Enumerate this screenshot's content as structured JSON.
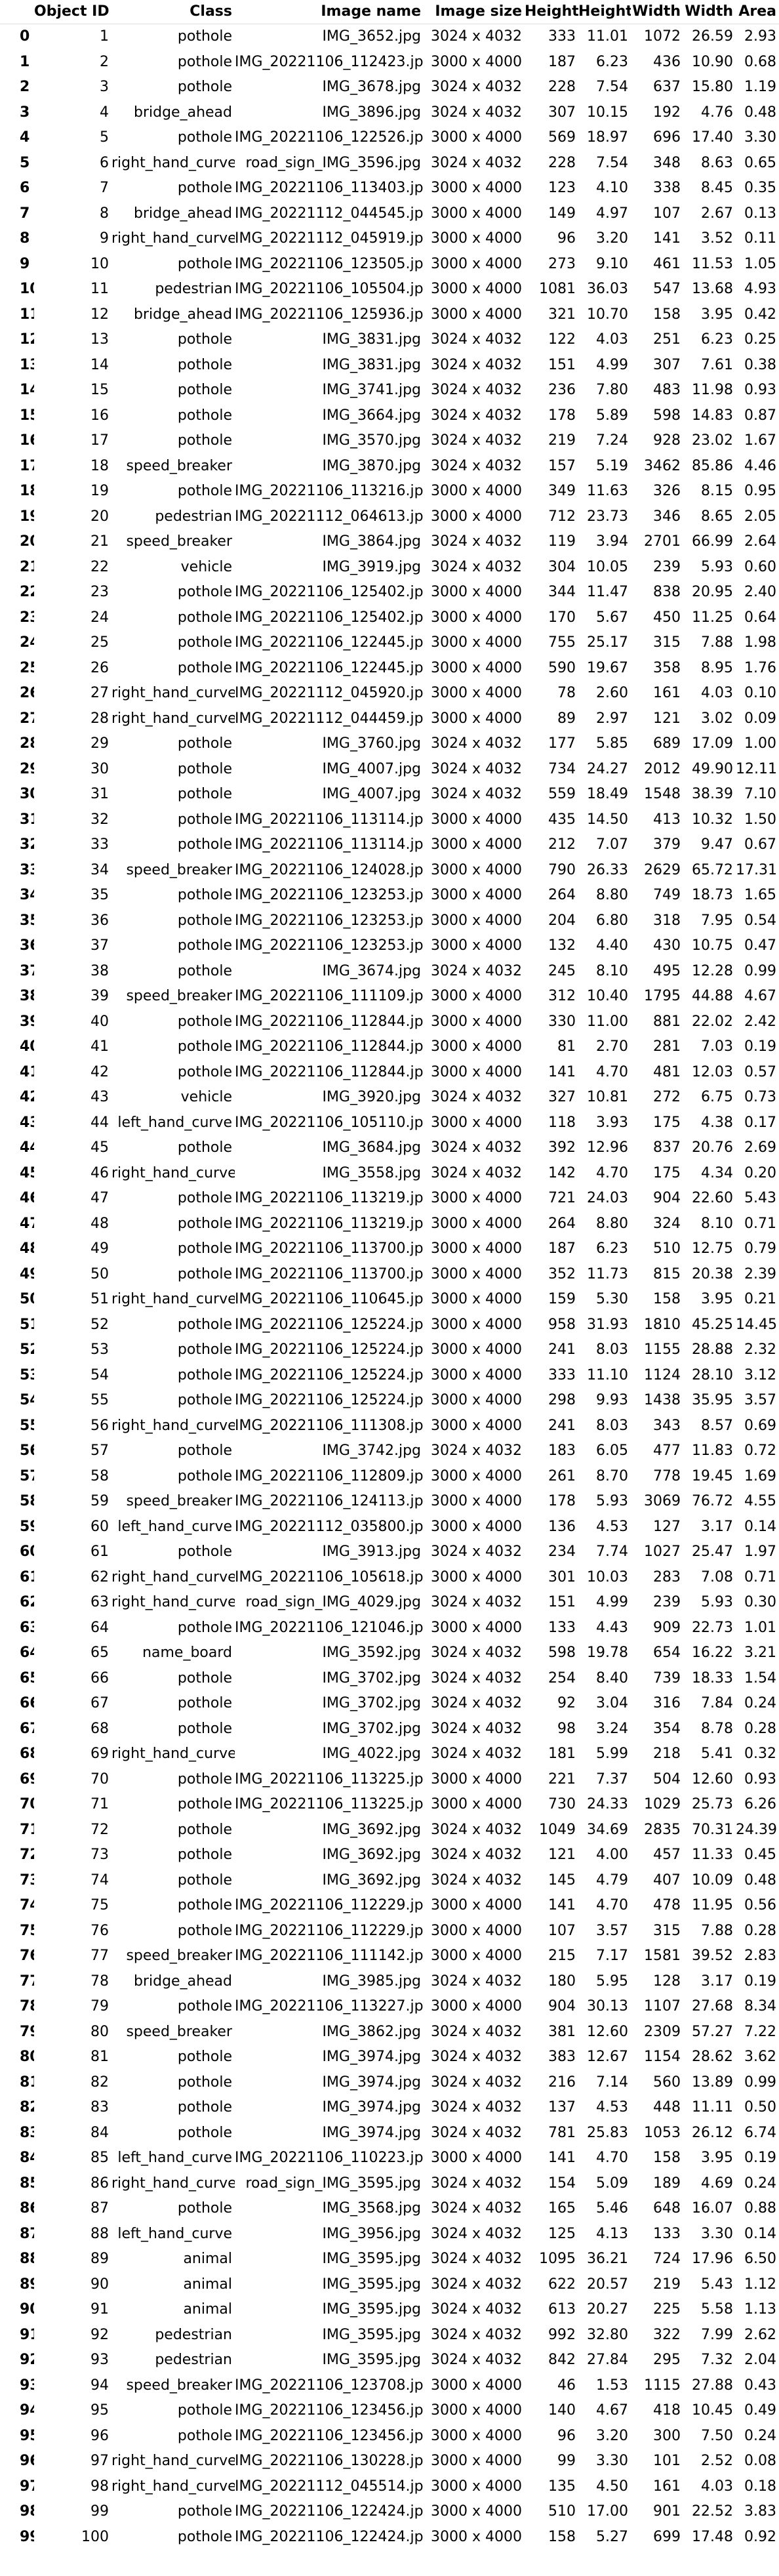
{
  "columns": [
    "",
    "Object ID",
    "Class",
    "Image name",
    "Image size",
    "Height",
    "Height",
    "Width",
    "Width",
    "Area"
  ],
  "rows": [
    [
      "0",
      "1",
      "pothole",
      "IMG_3652.jpg",
      "3024 x 4032",
      "333",
      "11.01",
      "1072",
      "26.59",
      "2.93"
    ],
    [
      "1",
      "2",
      "pothole",
      "IMG_20221106_112423.jpg",
      "3000 x 4000",
      "187",
      "6.23",
      "436",
      "10.90",
      "0.68"
    ],
    [
      "2",
      "3",
      "pothole",
      "IMG_3678.jpg",
      "3024 x 4032",
      "228",
      "7.54",
      "637",
      "15.80",
      "1.19"
    ],
    [
      "3",
      "4",
      "bridge_ahead",
      "IMG_3896.jpg",
      "3024 x 4032",
      "307",
      "10.15",
      "192",
      "4.76",
      "0.48"
    ],
    [
      "4",
      "5",
      "pothole",
      "IMG_20221106_122526.jpg",
      "3000 x 4000",
      "569",
      "18.97",
      "696",
      "17.40",
      "3.30"
    ],
    [
      "5",
      "6",
      "right_hand_curve",
      "road_sign_IMG_3596.jpg",
      "3024 x 4032",
      "228",
      "7.54",
      "348",
      "8.63",
      "0.65"
    ],
    [
      "6",
      "7",
      "pothole",
      "IMG_20221106_113403.jpg",
      "3000 x 4000",
      "123",
      "4.10",
      "338",
      "8.45",
      "0.35"
    ],
    [
      "7",
      "8",
      "bridge_ahead",
      "IMG_20221112_044545.jpg",
      "3000 x 4000",
      "149",
      "4.97",
      "107",
      "2.67",
      "0.13"
    ],
    [
      "8",
      "9",
      "right_hand_curve",
      "IMG_20221112_045919.jpg",
      "3000 x 4000",
      "96",
      "3.20",
      "141",
      "3.52",
      "0.11"
    ],
    [
      "9",
      "10",
      "pothole",
      "IMG_20221106_123505.jpg",
      "3000 x 4000",
      "273",
      "9.10",
      "461",
      "11.53",
      "1.05"
    ],
    [
      "10",
      "11",
      "pedestrian",
      "IMG_20221106_105504.jpg",
      "3000 x 4000",
      "1081",
      "36.03",
      "547",
      "13.68",
      "4.93"
    ],
    [
      "11",
      "12",
      "bridge_ahead",
      "IMG_20221106_125936.jpg",
      "3000 x 4000",
      "321",
      "10.70",
      "158",
      "3.95",
      "0.42"
    ],
    [
      "12",
      "13",
      "pothole",
      "IMG_3831.jpg",
      "3024 x 4032",
      "122",
      "4.03",
      "251",
      "6.23",
      "0.25"
    ],
    [
      "13",
      "14",
      "pothole",
      "IMG_3831.jpg",
      "3024 x 4032",
      "151",
      "4.99",
      "307",
      "7.61",
      "0.38"
    ],
    [
      "14",
      "15",
      "pothole",
      "IMG_3741.jpg",
      "3024 x 4032",
      "236",
      "7.80",
      "483",
      "11.98",
      "0.93"
    ],
    [
      "15",
      "16",
      "pothole",
      "IMG_3664.jpg",
      "3024 x 4032",
      "178",
      "5.89",
      "598",
      "14.83",
      "0.87"
    ],
    [
      "16",
      "17",
      "pothole",
      "IMG_3570.jpg",
      "3024 x 4032",
      "219",
      "7.24",
      "928",
      "23.02",
      "1.67"
    ],
    [
      "17",
      "18",
      "speed_breaker",
      "IMG_3870.jpg",
      "3024 x 4032",
      "157",
      "5.19",
      "3462",
      "85.86",
      "4.46"
    ],
    [
      "18",
      "19",
      "pothole",
      "IMG_20221106_113216.jpg",
      "3000 x 4000",
      "349",
      "11.63",
      "326",
      "8.15",
      "0.95"
    ],
    [
      "19",
      "20",
      "pedestrian",
      "IMG_20221112_064613.jpg",
      "3000 x 4000",
      "712",
      "23.73",
      "346",
      "8.65",
      "2.05"
    ],
    [
      "20",
      "21",
      "speed_breaker",
      "IMG_3864.jpg",
      "3024 x 4032",
      "119",
      "3.94",
      "2701",
      "66.99",
      "2.64"
    ],
    [
      "21",
      "22",
      "vehicle",
      "IMG_3919.jpg",
      "3024 x 4032",
      "304",
      "10.05",
      "239",
      "5.93",
      "0.60"
    ],
    [
      "22",
      "23",
      "pothole",
      "IMG_20221106_125402.jpg",
      "3000 x 4000",
      "344",
      "11.47",
      "838",
      "20.95",
      "2.40"
    ],
    [
      "23",
      "24",
      "pothole",
      "IMG_20221106_125402.jpg",
      "3000 x 4000",
      "170",
      "5.67",
      "450",
      "11.25",
      "0.64"
    ],
    [
      "24",
      "25",
      "pothole",
      "IMG_20221106_122445.jpg",
      "3000 x 4000",
      "755",
      "25.17",
      "315",
      "7.88",
      "1.98"
    ],
    [
      "25",
      "26",
      "pothole",
      "IMG_20221106_122445.jpg",
      "3000 x 4000",
      "590",
      "19.67",
      "358",
      "8.95",
      "1.76"
    ],
    [
      "26",
      "27",
      "right_hand_curve",
      "IMG_20221112_045920.jpg",
      "3000 x 4000",
      "78",
      "2.60",
      "161",
      "4.03",
      "0.10"
    ],
    [
      "27",
      "28",
      "right_hand_curve",
      "IMG_20221112_044459.jpg",
      "3000 x 4000",
      "89",
      "2.97",
      "121",
      "3.02",
      "0.09"
    ],
    [
      "28",
      "29",
      "pothole",
      "IMG_3760.jpg",
      "3024 x 4032",
      "177",
      "5.85",
      "689",
      "17.09",
      "1.00"
    ],
    [
      "29",
      "30",
      "pothole",
      "IMG_4007.jpg",
      "3024 x 4032",
      "734",
      "24.27",
      "2012",
      "49.90",
      "12.11"
    ],
    [
      "30",
      "31",
      "pothole",
      "IMG_4007.jpg",
      "3024 x 4032",
      "559",
      "18.49",
      "1548",
      "38.39",
      "7.10"
    ],
    [
      "31",
      "32",
      "pothole",
      "IMG_20221106_113114.jpg",
      "3000 x 4000",
      "435",
      "14.50",
      "413",
      "10.32",
      "1.50"
    ],
    [
      "32",
      "33",
      "pothole",
      "IMG_20221106_113114.jpg",
      "3000 x 4000",
      "212",
      "7.07",
      "379",
      "9.47",
      "0.67"
    ],
    [
      "33",
      "34",
      "speed_breaker",
      "IMG_20221106_124028.jpg",
      "3000 x 4000",
      "790",
      "26.33",
      "2629",
      "65.72",
      "17.31"
    ],
    [
      "34",
      "35",
      "pothole",
      "IMG_20221106_123253.jpg",
      "3000 x 4000",
      "264",
      "8.80",
      "749",
      "18.73",
      "1.65"
    ],
    [
      "35",
      "36",
      "pothole",
      "IMG_20221106_123253.jpg",
      "3000 x 4000",
      "204",
      "6.80",
      "318",
      "7.95",
      "0.54"
    ],
    [
      "36",
      "37",
      "pothole",
      "IMG_20221106_123253.jpg",
      "3000 x 4000",
      "132",
      "4.40",
      "430",
      "10.75",
      "0.47"
    ],
    [
      "37",
      "38",
      "pothole",
      "IMG_3674.jpg",
      "3024 x 4032",
      "245",
      "8.10",
      "495",
      "12.28",
      "0.99"
    ],
    [
      "38",
      "39",
      "speed_breaker",
      "IMG_20221106_111109.jpg",
      "3000 x 4000",
      "312",
      "10.40",
      "1795",
      "44.88",
      "4.67"
    ],
    [
      "39",
      "40",
      "pothole",
      "IMG_20221106_112844.jpg",
      "3000 x 4000",
      "330",
      "11.00",
      "881",
      "22.02",
      "2.42"
    ],
    [
      "40",
      "41",
      "pothole",
      "IMG_20221106_112844.jpg",
      "3000 x 4000",
      "81",
      "2.70",
      "281",
      "7.03",
      "0.19"
    ],
    [
      "41",
      "42",
      "pothole",
      "IMG_20221106_112844.jpg",
      "3000 x 4000",
      "141",
      "4.70",
      "481",
      "12.03",
      "0.57"
    ],
    [
      "42",
      "43",
      "vehicle",
      "IMG_3920.jpg",
      "3024 x 4032",
      "327",
      "10.81",
      "272",
      "6.75",
      "0.73"
    ],
    [
      "43",
      "44",
      "left_hand_curve",
      "IMG_20221106_105110.jpg",
      "3000 x 4000",
      "118",
      "3.93",
      "175",
      "4.38",
      "0.17"
    ],
    [
      "44",
      "45",
      "pothole",
      "IMG_3684.jpg",
      "3024 x 4032",
      "392",
      "12.96",
      "837",
      "20.76",
      "2.69"
    ],
    [
      "45",
      "46",
      "right_hand_curve",
      "IMG_3558.jpg",
      "3024 x 4032",
      "142",
      "4.70",
      "175",
      "4.34",
      "0.20"
    ],
    [
      "46",
      "47",
      "pothole",
      "IMG_20221106_113219.jpg",
      "3000 x 4000",
      "721",
      "24.03",
      "904",
      "22.60",
      "5.43"
    ],
    [
      "47",
      "48",
      "pothole",
      "IMG_20221106_113219.jpg",
      "3000 x 4000",
      "264",
      "8.80",
      "324",
      "8.10",
      "0.71"
    ],
    [
      "48",
      "49",
      "pothole",
      "IMG_20221106_113700.jpg",
      "3000 x 4000",
      "187",
      "6.23",
      "510",
      "12.75",
      "0.79"
    ],
    [
      "49",
      "50",
      "pothole",
      "IMG_20221106_113700.jpg",
      "3000 x 4000",
      "352",
      "11.73",
      "815",
      "20.38",
      "2.39"
    ],
    [
      "50",
      "51",
      "right_hand_curve",
      "IMG_20221106_110645.jpg",
      "3000 x 4000",
      "159",
      "5.30",
      "158",
      "3.95",
      "0.21"
    ],
    [
      "51",
      "52",
      "pothole",
      "IMG_20221106_125224.jpg",
      "3000 x 4000",
      "958",
      "31.93",
      "1810",
      "45.25",
      "14.45"
    ],
    [
      "52",
      "53",
      "pothole",
      "IMG_20221106_125224.jpg",
      "3000 x 4000",
      "241",
      "8.03",
      "1155",
      "28.88",
      "2.32"
    ],
    [
      "53",
      "54",
      "pothole",
      "IMG_20221106_125224.jpg",
      "3000 x 4000",
      "333",
      "11.10",
      "1124",
      "28.10",
      "3.12"
    ],
    [
      "54",
      "55",
      "pothole",
      "IMG_20221106_125224.jpg",
      "3000 x 4000",
      "298",
      "9.93",
      "1438",
      "35.95",
      "3.57"
    ],
    [
      "55",
      "56",
      "right_hand_curve",
      "IMG_20221106_111308.jpg",
      "3000 x 4000",
      "241",
      "8.03",
      "343",
      "8.57",
      "0.69"
    ],
    [
      "56",
      "57",
      "pothole",
      "IMG_3742.jpg",
      "3024 x 4032",
      "183",
      "6.05",
      "477",
      "11.83",
      "0.72"
    ],
    [
      "57",
      "58",
      "pothole",
      "IMG_20221106_112809.jpg",
      "3000 x 4000",
      "261",
      "8.70",
      "778",
      "19.45",
      "1.69"
    ],
    [
      "58",
      "59",
      "speed_breaker",
      "IMG_20221106_124113.jpg",
      "3000 x 4000",
      "178",
      "5.93",
      "3069",
      "76.72",
      "4.55"
    ],
    [
      "59",
      "60",
      "left_hand_curve",
      "IMG_20221112_035800.jpg",
      "3000 x 4000",
      "136",
      "4.53",
      "127",
      "3.17",
      "0.14"
    ],
    [
      "60",
      "61",
      "pothole",
      "IMG_3913.jpg",
      "3024 x 4032",
      "234",
      "7.74",
      "1027",
      "25.47",
      "1.97"
    ],
    [
      "61",
      "62",
      "right_hand_curve",
      "IMG_20221106_105618.jpg",
      "3000 x 4000",
      "301",
      "10.03",
      "283",
      "7.08",
      "0.71"
    ],
    [
      "62",
      "63",
      "right_hand_curve",
      "road_sign_IMG_4029.jpg",
      "3024 x 4032",
      "151",
      "4.99",
      "239",
      "5.93",
      "0.30"
    ],
    [
      "63",
      "64",
      "pothole",
      "IMG_20221106_121046.jpg",
      "3000 x 4000",
      "133",
      "4.43",
      "909",
      "22.73",
      "1.01"
    ],
    [
      "64",
      "65",
      "name_board",
      "IMG_3592.jpg",
      "3024 x 4032",
      "598",
      "19.78",
      "654",
      "16.22",
      "3.21"
    ],
    [
      "65",
      "66",
      "pothole",
      "IMG_3702.jpg",
      "3024 x 4032",
      "254",
      "8.40",
      "739",
      "18.33",
      "1.54"
    ],
    [
      "66",
      "67",
      "pothole",
      "IMG_3702.jpg",
      "3024 x 4032",
      "92",
      "3.04",
      "316",
      "7.84",
      "0.24"
    ],
    [
      "67",
      "68",
      "pothole",
      "IMG_3702.jpg",
      "3024 x 4032",
      "98",
      "3.24",
      "354",
      "8.78",
      "0.28"
    ],
    [
      "68",
      "69",
      "right_hand_curve",
      "IMG_4022.jpg",
      "3024 x 4032",
      "181",
      "5.99",
      "218",
      "5.41",
      "0.32"
    ],
    [
      "69",
      "70",
      "pothole",
      "IMG_20221106_113225.jpg",
      "3000 x 4000",
      "221",
      "7.37",
      "504",
      "12.60",
      "0.93"
    ],
    [
      "70",
      "71",
      "pothole",
      "IMG_20221106_113225.jpg",
      "3000 x 4000",
      "730",
      "24.33",
      "1029",
      "25.73",
      "6.26"
    ],
    [
      "71",
      "72",
      "pothole",
      "IMG_3692.jpg",
      "3024 x 4032",
      "1049",
      "34.69",
      "2835",
      "70.31",
      "24.39"
    ],
    [
      "72",
      "73",
      "pothole",
      "IMG_3692.jpg",
      "3024 x 4032",
      "121",
      "4.00",
      "457",
      "11.33",
      "0.45"
    ],
    [
      "73",
      "74",
      "pothole",
      "IMG_3692.jpg",
      "3024 x 4032",
      "145",
      "4.79",
      "407",
      "10.09",
      "0.48"
    ],
    [
      "74",
      "75",
      "pothole",
      "IMG_20221106_112229.jpg",
      "3000 x 4000",
      "141",
      "4.70",
      "478",
      "11.95",
      "0.56"
    ],
    [
      "75",
      "76",
      "pothole",
      "IMG_20221106_112229.jpg",
      "3000 x 4000",
      "107",
      "3.57",
      "315",
      "7.88",
      "0.28"
    ],
    [
      "76",
      "77",
      "speed_breaker",
      "IMG_20221106_111142.jpg",
      "3000 x 4000",
      "215",
      "7.17",
      "1581",
      "39.52",
      "2.83"
    ],
    [
      "77",
      "78",
      "bridge_ahead",
      "IMG_3985.jpg",
      "3024 x 4032",
      "180",
      "5.95",
      "128",
      "3.17",
      "0.19"
    ],
    [
      "78",
      "79",
      "pothole",
      "IMG_20221106_113227.jpg",
      "3000 x 4000",
      "904",
      "30.13",
      "1107",
      "27.68",
      "8.34"
    ],
    [
      "79",
      "80",
      "speed_breaker",
      "IMG_3862.jpg",
      "3024 x 4032",
      "381",
      "12.60",
      "2309",
      "57.27",
      "7.22"
    ],
    [
      "80",
      "81",
      "pothole",
      "IMG_3974.jpg",
      "3024 x 4032",
      "383",
      "12.67",
      "1154",
      "28.62",
      "3.62"
    ],
    [
      "81",
      "82",
      "pothole",
      "IMG_3974.jpg",
      "3024 x 4032",
      "216",
      "7.14",
      "560",
      "13.89",
      "0.99"
    ],
    [
      "82",
      "83",
      "pothole",
      "IMG_3974.jpg",
      "3024 x 4032",
      "137",
      "4.53",
      "448",
      "11.11",
      "0.50"
    ],
    [
      "83",
      "84",
      "pothole",
      "IMG_3974.jpg",
      "3024 x 4032",
      "781",
      "25.83",
      "1053",
      "26.12",
      "6.74"
    ],
    [
      "84",
      "85",
      "left_hand_curve",
      "IMG_20221106_110223.jpg",
      "3000 x 4000",
      "141",
      "4.70",
      "158",
      "3.95",
      "0.19"
    ],
    [
      "85",
      "86",
      "right_hand_curve",
      "road_sign_IMG_3595.jpg",
      "3024 x 4032",
      "154",
      "5.09",
      "189",
      "4.69",
      "0.24"
    ],
    [
      "86",
      "87",
      "pothole",
      "IMG_3568.jpg",
      "3024 x 4032",
      "165",
      "5.46",
      "648",
      "16.07",
      "0.88"
    ],
    [
      "87",
      "88",
      "left_hand_curve",
      "IMG_3956.jpg",
      "3024 x 4032",
      "125",
      "4.13",
      "133",
      "3.30",
      "0.14"
    ],
    [
      "88",
      "89",
      "animal",
      "IMG_3595.jpg",
      "3024 x 4032",
      "1095",
      "36.21",
      "724",
      "17.96",
      "6.50"
    ],
    [
      "89",
      "90",
      "animal",
      "IMG_3595.jpg",
      "3024 x 4032",
      "622",
      "20.57",
      "219",
      "5.43",
      "1.12"
    ],
    [
      "90",
      "91",
      "animal",
      "IMG_3595.jpg",
      "3024 x 4032",
      "613",
      "20.27",
      "225",
      "5.58",
      "1.13"
    ],
    [
      "91",
      "92",
      "pedestrian",
      "IMG_3595.jpg",
      "3024 x 4032",
      "992",
      "32.80",
      "322",
      "7.99",
      "2.62"
    ],
    [
      "92",
      "93",
      "pedestrian",
      "IMG_3595.jpg",
      "3024 x 4032",
      "842",
      "27.84",
      "295",
      "7.32",
      "2.04"
    ],
    [
      "93",
      "94",
      "speed_breaker",
      "IMG_20221106_123708.jpg",
      "3000 x 4000",
      "46",
      "1.53",
      "1115",
      "27.88",
      "0.43"
    ],
    [
      "94",
      "95",
      "pothole",
      "IMG_20221106_123456.jpg",
      "3000 x 4000",
      "140",
      "4.67",
      "418",
      "10.45",
      "0.49"
    ],
    [
      "95",
      "96",
      "pothole",
      "IMG_20221106_123456.jpg",
      "3000 x 4000",
      "96",
      "3.20",
      "300",
      "7.50",
      "0.24"
    ],
    [
      "96",
      "97",
      "right_hand_curve",
      "IMG_20221106_130228.jpg",
      "3000 x 4000",
      "99",
      "3.30",
      "101",
      "2.52",
      "0.08"
    ],
    [
      "97",
      "98",
      "right_hand_curve",
      "IMG_20221112_045514.jpg",
      "3000 x 4000",
      "135",
      "4.50",
      "161",
      "4.03",
      "0.18"
    ],
    [
      "98",
      "99",
      "pothole",
      "IMG_20221106_122424.jpg",
      "3000 x 4000",
      "510",
      "17.00",
      "901",
      "22.52",
      "3.83"
    ],
    [
      "99",
      "100",
      "pothole",
      "IMG_20221106_122424.jpg",
      "3000 x 4000",
      "158",
      "5.27",
      "699",
      "17.48",
      "0.92"
    ]
  ]
}
